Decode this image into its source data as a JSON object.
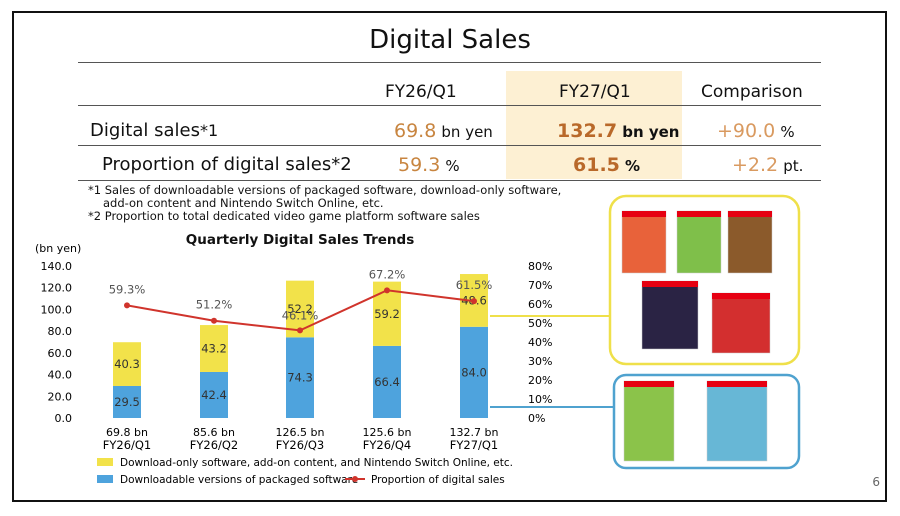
{
  "title": "Digital Sales",
  "table": {
    "headers": [
      "FY26/Q1",
      "FY27/Q1",
      "Comparison"
    ],
    "rows": [
      {
        "label": "Digital sales",
        "note": "*1",
        "fy26": "69.8",
        "fy26_unit": "bn yen",
        "fy27": "132.7",
        "fy27_unit": "bn yen",
        "cmp": "+90.0",
        "cmp_unit": "%"
      },
      {
        "label": "Proportion of digital sales",
        "note": "*2",
        "fy26": "59.3",
        "fy26_unit": "%",
        "fy27": "61.5",
        "fy27_unit": "%",
        "cmp": "+2.2",
        "cmp_unit": "pt."
      }
    ]
  },
  "notes": {
    "n1a": "*1 Sales of downloadable versions of packaged software, download-only software,",
    "n1b": "add-on content and Nintendo Switch Online, etc.",
    "n2": "*2 Proportion to total dedicated video game platform software sales"
  },
  "page_number": "6",
  "colors": {
    "download_only": "#f2e24a",
    "packaged": "#4ea3dd",
    "proportion_line": "#d0342c",
    "highlight_col": "#fdf0d3",
    "value_orange": "#c88540",
    "callout_yellow": "#efe04a",
    "callout_blue": "#4fa2cf"
  },
  "chart_data": {
    "type": "bar",
    "title": "Quarterly Digital Sales Trends",
    "ylabel": "(bn yen)",
    "ylim": [
      0,
      140
    ],
    "yticks": [
      "140.0",
      "120.0",
      "100.0",
      "80.0",
      "60.0",
      "40.0",
      "20.0",
      "0.0"
    ],
    "y2lim": [
      0,
      80
    ],
    "y2ticks": [
      "80%",
      "70%",
      "60%",
      "50%",
      "40%",
      "30%",
      "20%",
      "10%",
      "0%"
    ],
    "categories": [
      "FY26/Q1",
      "FY26/Q2",
      "FY26/Q3",
      "FY26/Q4",
      "FY27/Q1"
    ],
    "totals": [
      "69.8 bn",
      "85.6 bn",
      "126.5 bn",
      "125.6 bn",
      "132.7 bn"
    ],
    "series": [
      {
        "name": "Downloadable versions of packaged software",
        "values": [
          29.5,
          42.4,
          74.3,
          66.4,
          84.0
        ],
        "labels": [
          "29.5",
          "42.4",
          "74.3",
          "66.4",
          "84.0"
        ]
      },
      {
        "name": "Download-only software, add-on content, and Nintendo Switch Online, etc.",
        "values": [
          40.3,
          43.2,
          52.2,
          59.2,
          48.6
        ],
        "labels": [
          "40.3",
          "43.2",
          "52.2",
          "59.2",
          "48.6"
        ]
      },
      {
        "name": "Proportion of digital sales",
        "axis": "right",
        "values": [
          59.3,
          51.2,
          46.1,
          67.2,
          61.5
        ],
        "labels": [
          "59.3%",
          "51.2%",
          "46.1%",
          "67.2%",
          "61.5%"
        ]
      }
    ],
    "legend": "bottom"
  }
}
